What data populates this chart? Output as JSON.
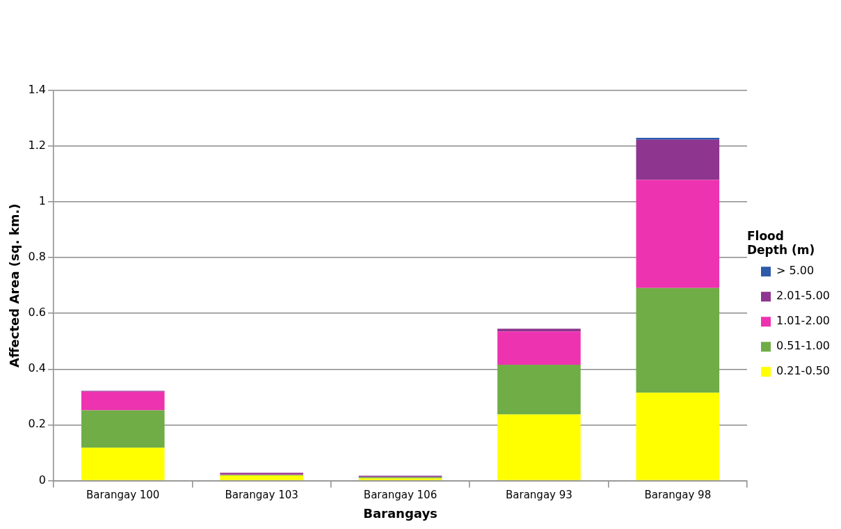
{
  "chart_data": {
    "type": "bar",
    "stacked": true,
    "xlabel": "Barangays",
    "ylabel": "Affected Area (sq. km.)",
    "legend_title": "Flood Depth (m)",
    "categories": [
      "Barangay 100",
      "Barangay 103",
      "Barangay 106",
      "Barangay 93",
      "Barangay 98"
    ],
    "series": [
      {
        "name": "0.21-0.50",
        "color": "#ffff00",
        "values": [
          0.118,
          0.018,
          0.008,
          0.237,
          0.315
        ]
      },
      {
        "name": "0.51-1.00",
        "color": "#70ad47",
        "values": [
          0.134,
          0.003,
          0.004,
          0.179,
          0.376
        ]
      },
      {
        "name": "1.01-2.00",
        "color": "#ee33b0",
        "values": [
          0.067,
          0.002,
          0.001,
          0.119,
          0.388
        ]
      },
      {
        "name": "2.01-5.00",
        "color": "#8e358f",
        "values": [
          0.003,
          0.005,
          0.004,
          0.01,
          0.144
        ]
      },
      {
        "name": "> 5.00",
        "color": "#2e5aa8",
        "values": [
          0,
          0,
          0,
          0,
          0.007
        ]
      }
    ],
    "ylim": [
      0,
      1.4
    ],
    "yticks": [
      0,
      0.2,
      0.4,
      0.6,
      0.8,
      1,
      1.2,
      1.4
    ],
    "grid": "y",
    "legend": "right"
  }
}
